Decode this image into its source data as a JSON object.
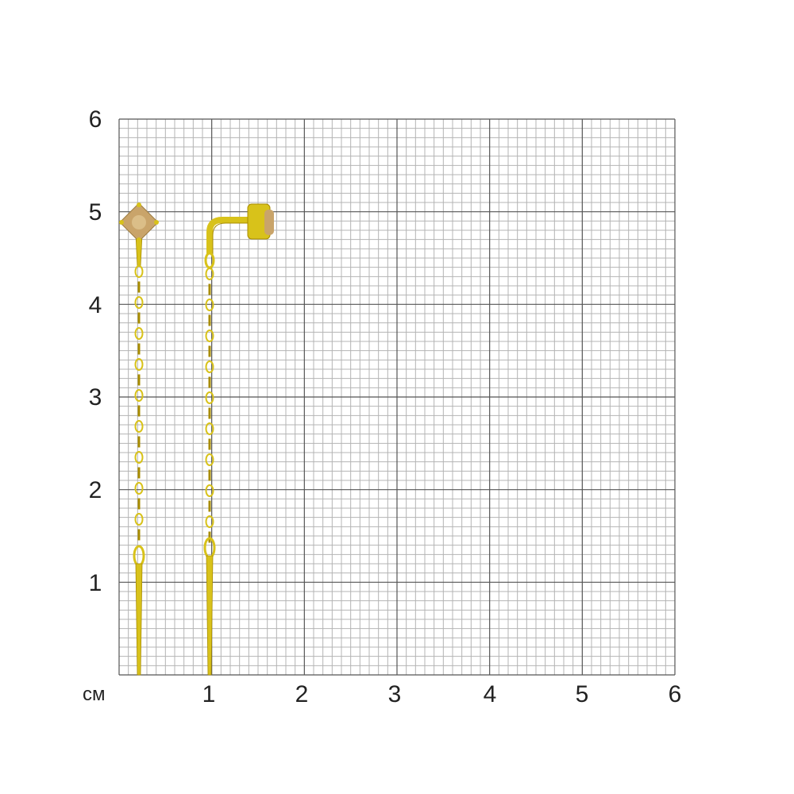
{
  "scale": {
    "unit": "см",
    "x_labels": [
      "1",
      "2",
      "3",
      "4",
      "5",
      "6"
    ],
    "y_labels": [
      "6",
      "5",
      "4",
      "3",
      "2",
      "1"
    ],
    "range_cm": 6,
    "minor_per_cm": 10
  },
  "colors": {
    "major_grid": "#555555",
    "minor_grid": "#b4b4b4",
    "gold": "#d8c21a",
    "gold_dark": "#a88c00",
    "stone": "#c9a46a"
  },
  "product": {
    "type": "threader earrings with stone",
    "items": [
      "threader-earring-front",
      "threader-earring-side"
    ]
  }
}
